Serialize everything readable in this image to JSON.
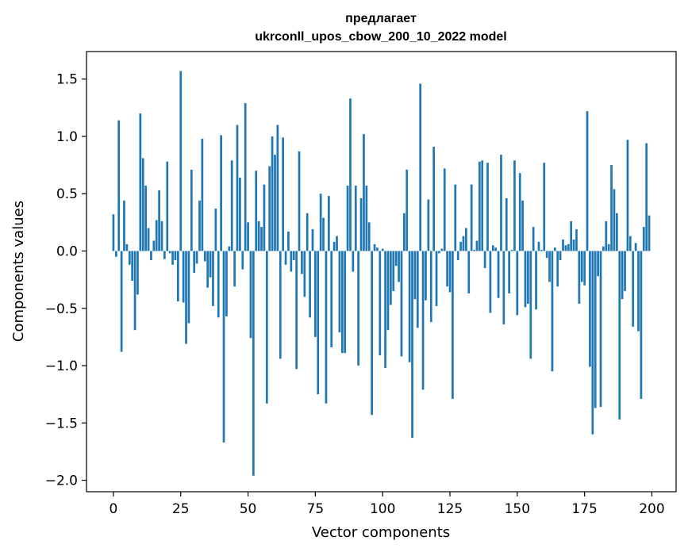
{
  "chart_data": {
    "type": "bar",
    "title_line1": "предлагает",
    "title_line2": "ukrconll_upos_cbow_200_10_2022 model",
    "xlabel": "Vector components",
    "ylabel": "Components values",
    "xlim": [
      -10,
      209
    ],
    "ylim": [
      -2.1,
      1.74
    ],
    "xticks": [
      0,
      25,
      50,
      75,
      100,
      125,
      150,
      175,
      200
    ],
    "xtick_labels": [
      "0",
      "25",
      "50",
      "75",
      "100",
      "125",
      "150",
      "175",
      "200"
    ],
    "yticks": [
      -2.0,
      -1.5,
      -1.0,
      -0.5,
      0.0,
      0.5,
      1.0,
      1.5
    ],
    "ytick_labels": [
      "−2.0",
      "−1.5",
      "−1.0",
      "−0.5",
      "0.0",
      "0.5",
      "1.0",
      "1.5"
    ],
    "bar_color": "#1f77b4",
    "values": [
      0.32,
      -0.05,
      1.14,
      -0.88,
      0.44,
      0.06,
      -0.12,
      -0.26,
      -0.69,
      -0.38,
      1.2,
      0.81,
      0.57,
      0.2,
      -0.08,
      0.09,
      0.27,
      0.53,
      0.26,
      -0.07,
      0.78,
      -0.02,
      -0.12,
      -0.08,
      -0.44,
      1.57,
      -0.45,
      -0.81,
      -0.63,
      0.71,
      -0.19,
      -0.11,
      0.44,
      0.98,
      -0.09,
      -0.32,
      -0.23,
      -0.48,
      0.37,
      -0.58,
      1.01,
      -1.67,
      -0.57,
      0.04,
      0.79,
      -0.31,
      1.1,
      0.64,
      -0.16,
      1.29,
      0.25,
      -0.76,
      -1.96,
      0.7,
      0.26,
      0.21,
      0.58,
      -1.33,
      0.74,
      1.0,
      0.84,
      1.1,
      -0.94,
      0.99,
      -0.12,
      0.17,
      -0.18,
      -0.08,
      -1.03,
      0.87,
      -0.2,
      -0.4,
      0.33,
      -0.58,
      0.19,
      -0.75,
      -1.25,
      0.5,
      0.29,
      -1.33,
      0.48,
      -0.84,
      0.08,
      0.13,
      -0.71,
      -0.89,
      -0.89,
      0.57,
      1.33,
      -0.18,
      0.57,
      -1.0,
      0.46,
      1.02,
      0.57,
      0.25,
      -1.43,
      0.06,
      0.03,
      -0.91,
      0.02,
      -1.02,
      -0.69,
      -0.47,
      -0.35,
      -0.13,
      -0.27,
      -0.92,
      0.33,
      0.71,
      -0.97,
      -1.63,
      -0.42,
      -0.67,
      1.46,
      -1.21,
      -0.43,
      0.45,
      -0.62,
      0.91,
      -0.48,
      -0.02,
      0.02,
      0.72,
      -0.31,
      -0.36,
      -1.29,
      0.58,
      -0.08,
      0.08,
      0.13,
      0.2,
      -0.37,
      0.58,
      0.01,
      0.09,
      0.78,
      0.79,
      -0.15,
      0.77,
      -0.54,
      0.05,
      0.03,
      -0.41,
      0.84,
      -0.64,
      0.46,
      -0.37,
      0.01,
      0.79,
      -0.56,
      0.68,
      0.44,
      -0.49,
      -0.46,
      -0.94,
      0.21,
      -0.51,
      0.08,
      0.01,
      0.77,
      -0.06,
      -0.27,
      -1.05,
      0.03,
      -0.31,
      -0.08,
      0.1,
      0.05,
      0.06,
      0.26,
      0.1,
      0.19,
      -0.46,
      -0.27,
      -0.3,
      1.22,
      -1.01,
      -1.6,
      -1.37,
      -0.22,
      -1.36,
      0.04,
      0.26,
      0.06,
      0.75,
      0.54,
      0.33,
      -1.47,
      -0.42,
      -0.35,
      0.97,
      0.13,
      -0.66,
      0.07,
      -0.7,
      -1.29,
      0.21,
      0.94,
      0.31
    ]
  }
}
